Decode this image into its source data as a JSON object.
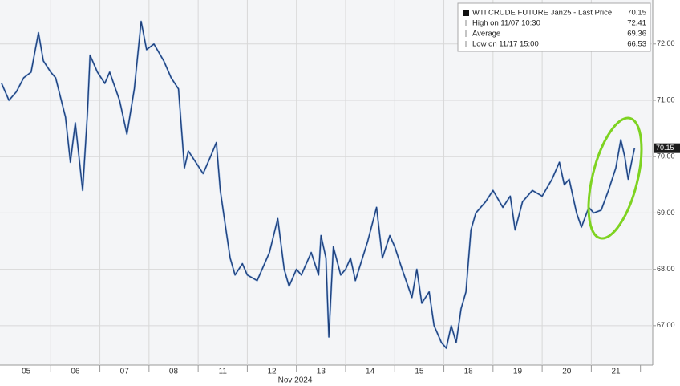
{
  "chart_data": {
    "type": "line",
    "categories": [
      "05",
      "06",
      "07",
      "08",
      "11",
      "12",
      "13",
      "14",
      "15",
      "18",
      "19",
      "20",
      "21"
    ],
    "x_axis_label": "Nov 2024",
    "series": [
      {
        "name": "WTI CRUDE FUTURE Jan25 - Last Price",
        "color": "#1d3f7a",
        "x": [
          0,
          0.15,
          0.3,
          0.45,
          0.6,
          0.75,
          0.85,
          1.0,
          1.1,
          1.3,
          1.4,
          1.5,
          1.65,
          1.75,
          1.8,
          1.95,
          2.1,
          2.2,
          2.4,
          2.55,
          2.7,
          2.84,
          2.95,
          3.1,
          3.3,
          3.45,
          3.6,
          3.72,
          3.8,
          3.95,
          4.1,
          4.25,
          4.37,
          4.45,
          4.55,
          4.65,
          4.75,
          4.9,
          5.0,
          5.2,
          5.45,
          5.62,
          5.75,
          5.85,
          6.0,
          6.1,
          6.3,
          6.45,
          6.5,
          6.6,
          6.66,
          6.75,
          6.9,
          7.0,
          7.1,
          7.2,
          7.45,
          7.63,
          7.75,
          7.9,
          8.0,
          8.15,
          8.35,
          8.45,
          8.55,
          8.7,
          8.8,
          8.95,
          9.05,
          9.15,
          9.25,
          9.35,
          9.45,
          9.55,
          9.65,
          9.85,
          10.0,
          10.2,
          10.35,
          10.45,
          10.6,
          10.8,
          11.0,
          11.2,
          11.35,
          11.45,
          11.55,
          11.7,
          11.8,
          11.95,
          12.05,
          12.2,
          12.35,
          12.5,
          12.6,
          12.68,
          12.75,
          12.82,
          12.88
        ],
        "values": [
          71.3,
          71.0,
          71.15,
          71.4,
          71.5,
          72.2,
          71.7,
          71.5,
          71.4,
          70.7,
          69.9,
          70.6,
          69.4,
          70.8,
          71.8,
          71.5,
          71.3,
          71.5,
          71.0,
          70.4,
          71.2,
          72.4,
          71.9,
          72.0,
          71.7,
          71.4,
          71.2,
          69.8,
          70.1,
          69.9,
          69.7,
          70.0,
          70.25,
          69.4,
          68.8,
          68.2,
          67.9,
          68.1,
          67.9,
          67.8,
          68.3,
          68.9,
          68.0,
          67.7,
          68.0,
          67.9,
          68.3,
          67.9,
          68.6,
          68.2,
          66.8,
          68.4,
          67.9,
          68.0,
          68.2,
          67.8,
          68.5,
          69.1,
          68.2,
          68.6,
          68.4,
          68.0,
          67.5,
          68.0,
          67.4,
          67.6,
          67.0,
          66.7,
          66.6,
          67.0,
          66.7,
          67.3,
          67.6,
          68.7,
          69.0,
          69.2,
          69.4,
          69.1,
          69.3,
          68.7,
          69.2,
          69.4,
          69.3,
          69.6,
          69.9,
          69.5,
          69.6,
          69.0,
          68.75,
          69.1,
          69.0,
          69.05,
          69.4,
          69.8,
          70.3,
          70.0,
          69.6,
          69.9,
          70.15
        ]
      }
    ],
    "last_price": 70.15,
    "legend": [
      {
        "label": "WTI CRUDE FUTURE Jan25 - Last Price",
        "value": 70.15
      },
      {
        "label": "High on 11/07 10:30",
        "value": 72.41
      },
      {
        "label": "Average",
        "value": 69.36
      },
      {
        "label": "Low on 11/17 15:00",
        "value": 66.53
      }
    ],
    "xlim": [
      0,
      13.25
    ],
    "ylim": [
      66.3,
      72.78
    ],
    "yticks": [
      {
        "value": 67,
        "label": "67.00"
      },
      {
        "value": 68,
        "label": "68.00"
      },
      {
        "value": 69,
        "label": "69.00"
      },
      {
        "value": 70,
        "label": "70.00"
      },
      {
        "value": 71,
        "label": "71.00"
      },
      {
        "value": 72,
        "label": "72.00"
      }
    ],
    "grid": true
  }
}
